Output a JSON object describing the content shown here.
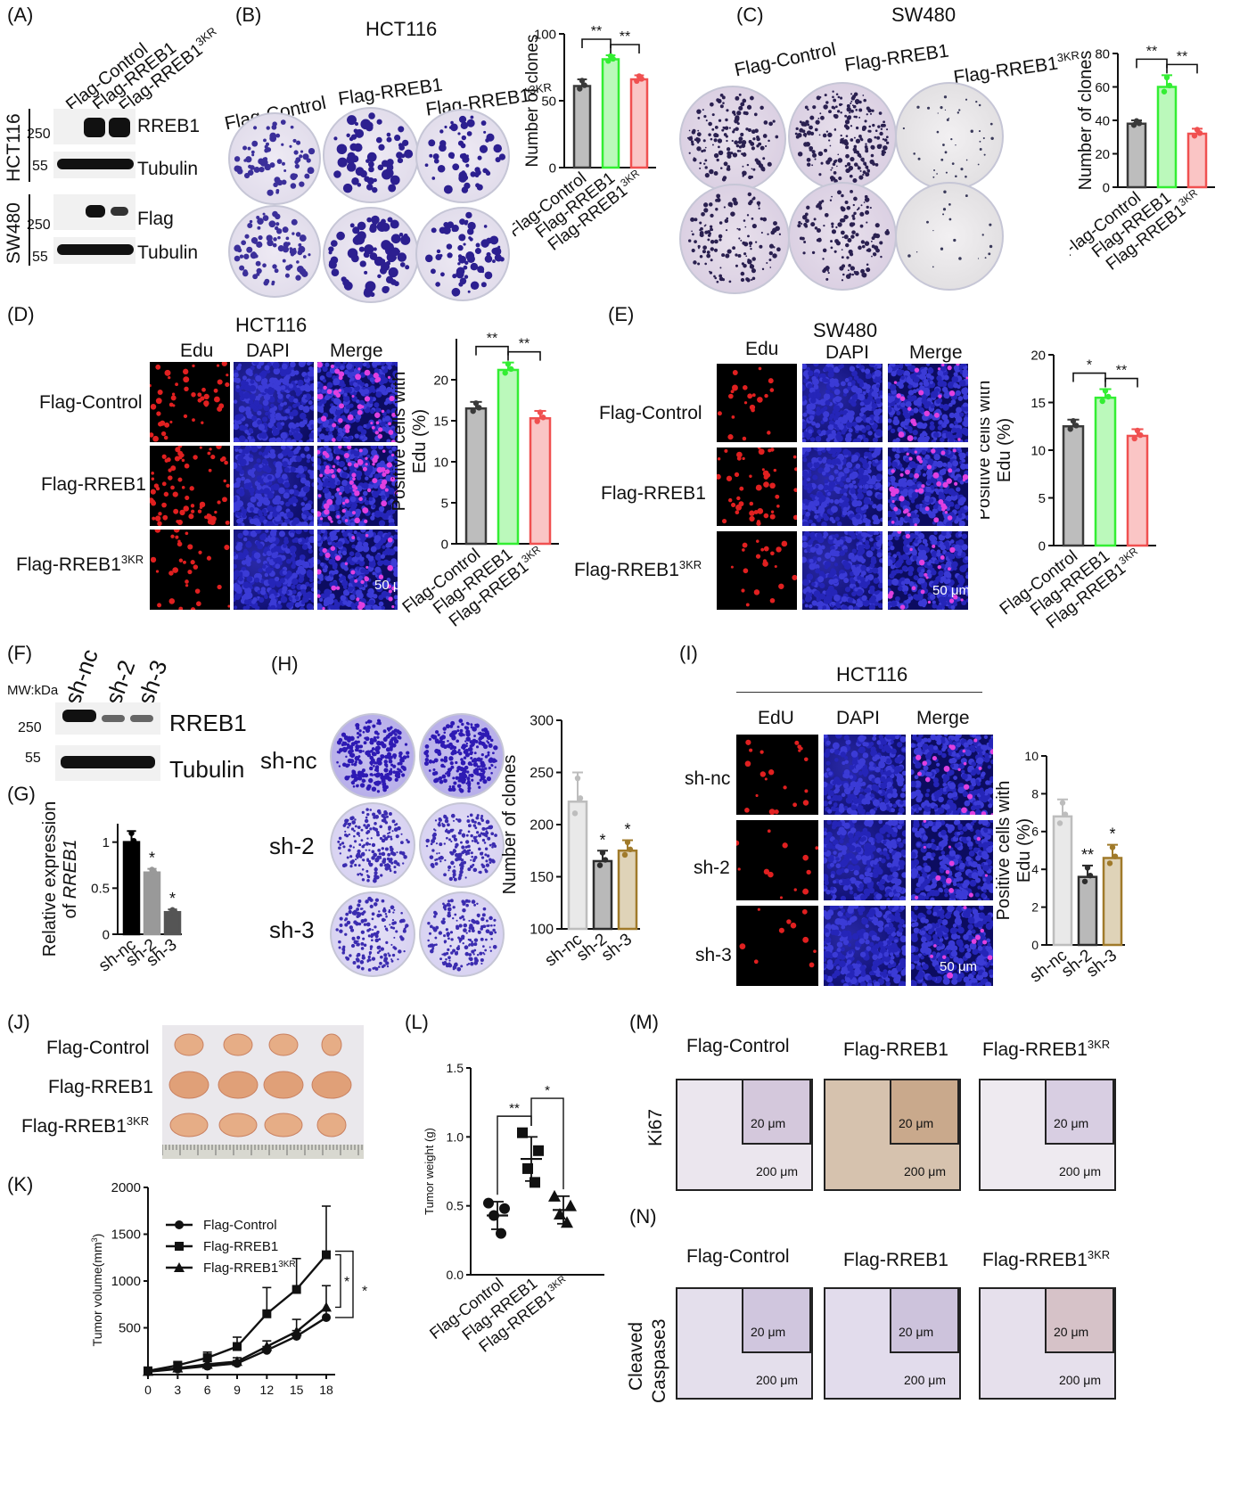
{
  "panels": {
    "A": "(A)",
    "B": "(B)",
    "C": "(C)",
    "D": "(D)",
    "E": "(E)",
    "F": "(F)",
    "G": "(G)",
    "H": "(H)",
    "I": "(I)",
    "J": "(J)",
    "K": "(K)",
    "L": "(L)",
    "M": "(M)",
    "N": "(N)"
  },
  "groups": {
    "control": "Flag-Control",
    "rreb1": "Flag-RREB1",
    "rreb1_3kr_base": "Flag-RREB1",
    "sup_3kr": "3KR"
  },
  "sh": {
    "nc": "sh-nc",
    "s2": "sh-2",
    "s3": "sh-3"
  },
  "cells": {
    "hct116": "HCT116",
    "sw480": "SW480"
  },
  "blotA": {
    "rreb1": "RREB1",
    "tubulin": "Tubulin",
    "flag": "Flag",
    "mw250": "250",
    "mw55": "55"
  },
  "blotF": {
    "mw": "MW:kDa",
    "rreb1": "RREB1",
    "tubulin": "Tubulin",
    "mw250": "250",
    "mw55": "55"
  },
  "stain": {
    "edu": "Edu",
    "edu_caps": "EdU",
    "dapi": "DAPI",
    "merge": "Merge"
  },
  "scale": {
    "s50": "50 μm",
    "s20": "20 μm",
    "s200": "200 μm"
  },
  "ihc": {
    "ki67": "Ki67",
    "cc3_a": "Cleaved",
    "cc3_b": "Caspase3"
  },
  "chart_data": [
    {
      "panel": "B",
      "type": "bar",
      "categories": [
        "Flag-Control",
        "Flag-RREB1",
        "Flag-RREB1 3KR"
      ],
      "values": [
        61,
        81,
        66
      ],
      "errors": [
        5,
        3,
        3
      ],
      "ylabel": "Number of clones",
      "ylim": [
        0,
        100
      ],
      "yticks": [
        0,
        50,
        100
      ],
      "colors": [
        "#3a3a3a",
        "#33ee33",
        "#f05050"
      ],
      "significance": [
        "**",
        "**"
      ]
    },
    {
      "panel": "C",
      "type": "bar",
      "categories": [
        "Flag-Control",
        "Flag-RREB1",
        "Flag-RREB1 3KR"
      ],
      "values": [
        38,
        60,
        32
      ],
      "errors": [
        2,
        7,
        3
      ],
      "ylabel": "Number of clones",
      "ylim": [
        0,
        80
      ],
      "yticks": [
        0,
        20,
        40,
        60,
        80
      ],
      "colors": [
        "#3a3a3a",
        "#33ee33",
        "#f05050"
      ],
      "significance": [
        "**",
        "**"
      ]
    },
    {
      "panel": "D",
      "type": "bar",
      "categories": [
        "Flag-Control",
        "Flag-RREB1",
        "Flag-RREB1 3KR"
      ],
      "values": [
        16.5,
        21.2,
        15.3
      ],
      "errors": [
        0.8,
        0.9,
        0.9
      ],
      "ylabel": "Positive cells with Edu (%)",
      "ylim": [
        0,
        25
      ],
      "yticks": [
        0,
        5,
        10,
        15,
        20
      ],
      "colors": [
        "#3a3a3a",
        "#33ee33",
        "#f05050"
      ],
      "significance": [
        "**",
        "**"
      ]
    },
    {
      "panel": "E",
      "type": "bar",
      "categories": [
        "Flag-Control",
        "Flag-RREB1",
        "Flag-RREB1 3KR"
      ],
      "values": [
        12.5,
        15.5,
        11.5
      ],
      "errors": [
        0.7,
        0.9,
        0.7
      ],
      "ylabel": "Positive cells with Edu (%)",
      "ylim": [
        0,
        20
      ],
      "yticks": [
        0,
        5,
        10,
        15,
        20
      ],
      "colors": [
        "#3a3a3a",
        "#33ee33",
        "#f05050"
      ],
      "significance": [
        "*",
        "**"
      ]
    },
    {
      "panel": "G",
      "type": "bar",
      "categories": [
        "sh-nc",
        "sh-2",
        "sh-3"
      ],
      "values": [
        1.0,
        0.67,
        0.24
      ],
      "errors": [
        0.12,
        0.04,
        0.03
      ],
      "ylabel": "Relative expression of RREB1",
      "ylim": [
        0,
        1.2
      ],
      "yticks": [
        0,
        0.5,
        1.0
      ],
      "colors": [
        "#000000",
        "#999999",
        "#555555"
      ],
      "significance": [
        "*",
        "*"
      ]
    },
    {
      "panel": "H",
      "type": "bar",
      "categories": [
        "sh-nc",
        "sh-2",
        "sh-3"
      ],
      "values": [
        222,
        165,
        175
      ],
      "errors": [
        28,
        10,
        10
      ],
      "ylabel": "Number of clones",
      "ylim": [
        100,
        300
      ],
      "yticks": [
        100,
        150,
        200,
        250,
        300
      ],
      "colors": [
        "#bdbdbd",
        "#2d2d2d",
        "#a07a2a"
      ],
      "significance": [
        "*",
        "*"
      ]
    },
    {
      "panel": "I",
      "type": "bar",
      "categories": [
        "sh-nc",
        "sh-2",
        "sh-3"
      ],
      "values": [
        6.8,
        3.6,
        4.6
      ],
      "errors": [
        0.9,
        0.6,
        0.7
      ],
      "ylabel": "Positive cells with Edu (%)",
      "ylim": [
        0,
        10
      ],
      "yticks": [
        0,
        2,
        4,
        6,
        8,
        10
      ],
      "colors": [
        "#bdbdbd",
        "#2d2d2d",
        "#a07a2a"
      ],
      "significance": [
        "**",
        "*"
      ]
    },
    {
      "panel": "K",
      "type": "line",
      "x": [
        0,
        3,
        6,
        9,
        12,
        15,
        18
      ],
      "series": [
        {
          "name": "Flag-Control",
          "marker": "circle",
          "values": [
            30,
            60,
            90,
            120,
            260,
            410,
            610
          ],
          "errors": [
            10,
            15,
            20,
            30,
            40,
            60,
            80
          ]
        },
        {
          "name": "Flag-RREB1",
          "marker": "square",
          "values": [
            40,
            100,
            180,
            300,
            650,
            910,
            1280
          ],
          "errors": [
            15,
            30,
            60,
            100,
            280,
            330,
            520
          ]
        },
        {
          "name": "Flag-RREB1 3KR",
          "marker": "triangle",
          "values": [
            35,
            70,
            110,
            140,
            300,
            460,
            720
          ],
          "errors": [
            10,
            20,
            30,
            40,
            60,
            130,
            230
          ]
        }
      ],
      "ylabel": "Tumor volume(mm3)",
      "ylim": [
        0,
        2000
      ],
      "yticks": [
        500,
        1000,
        1500,
        2000
      ],
      "xticks": [
        0,
        3,
        6,
        9,
        12,
        15,
        18
      ],
      "significance": [
        "*",
        "*"
      ]
    },
    {
      "panel": "L",
      "type": "scatter",
      "categories": [
        "Flag-Control",
        "Flag-RREB1",
        "Flag-RREB1 3KR"
      ],
      "points": [
        [
          0.52,
          0.48,
          0.43,
          0.3
        ],
        [
          1.03,
          0.9,
          0.77,
          0.67
        ],
        [
          0.57,
          0.5,
          0.44,
          0.38
        ]
      ],
      "means": [
        0.43,
        0.84,
        0.47
      ],
      "sd": [
        0.1,
        0.16,
        0.1
      ],
      "ylabel": "Tumor weight (g)",
      "ylim": [
        0,
        1.5
      ],
      "yticks": [
        0.0,
        0.5,
        1.0,
        1.5
      ],
      "significance": [
        "**",
        "*"
      ]
    }
  ]
}
